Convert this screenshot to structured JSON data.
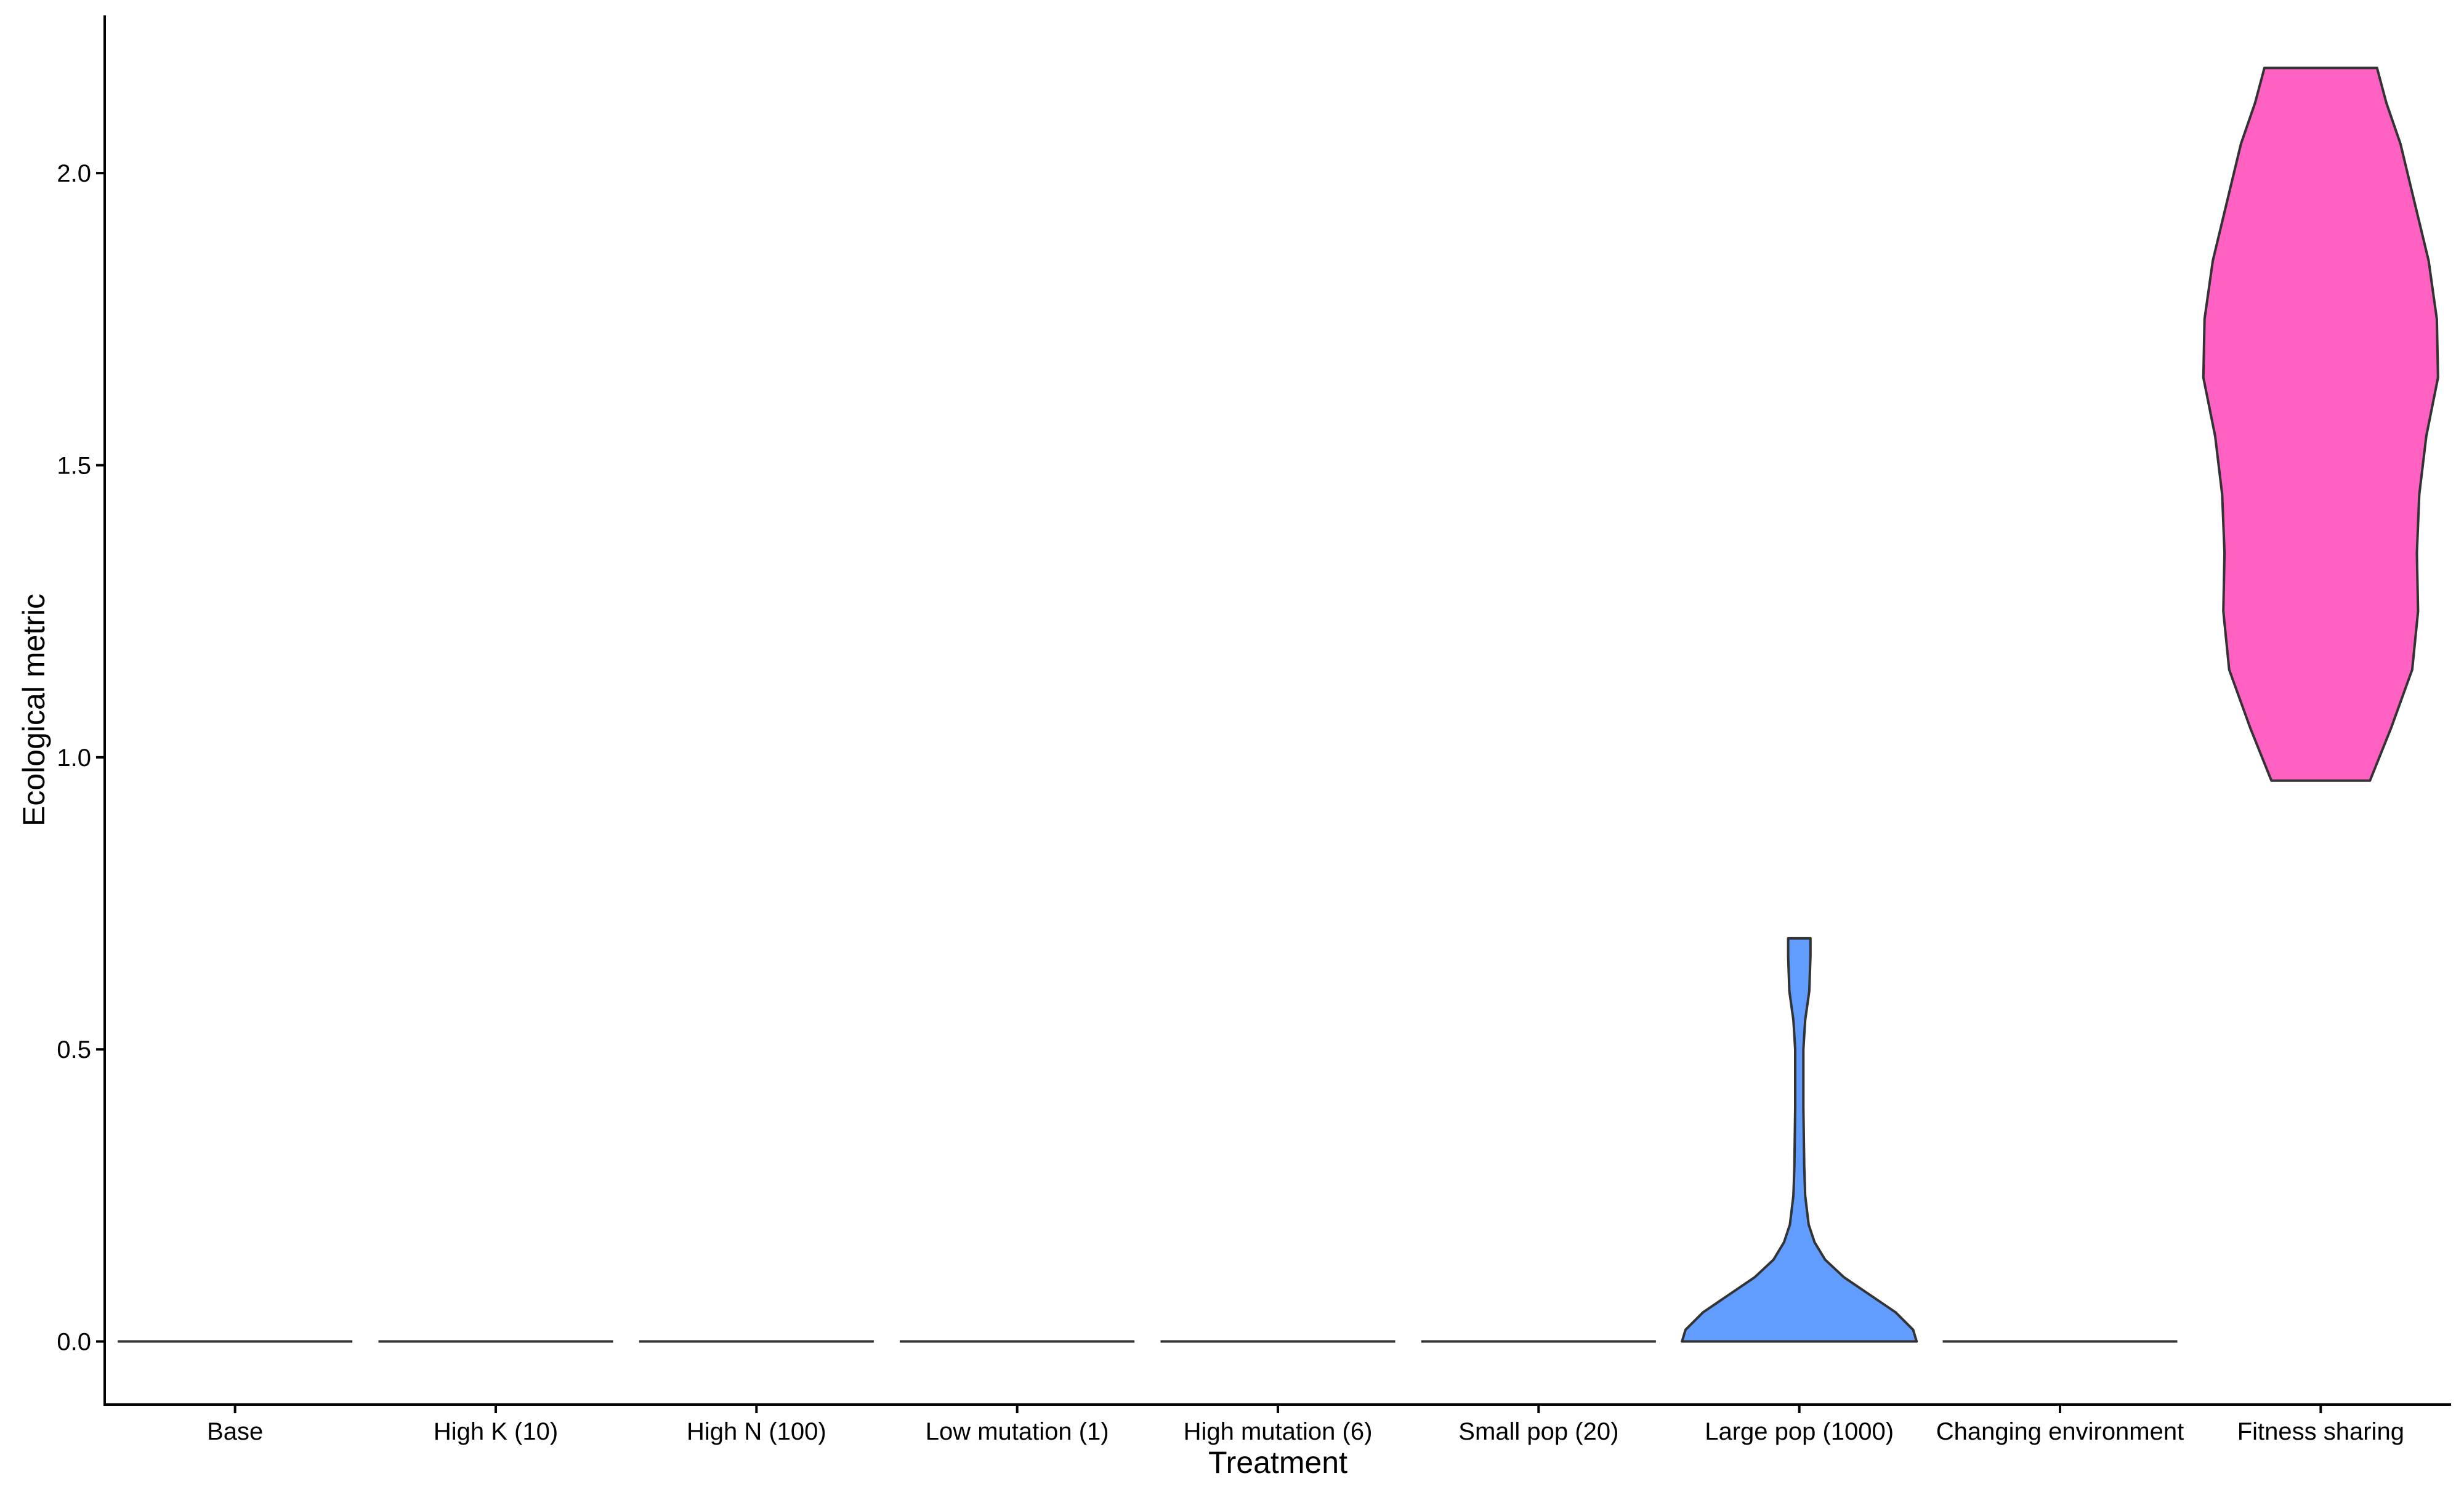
{
  "chart_data": {
    "type": "violin",
    "xlabel": "Treatment",
    "ylabel": "Ecological metric",
    "ylim": [
      -0.108,
      2.27
    ],
    "yticks": [
      0.0,
      0.5,
      1.0,
      1.5,
      2.0
    ],
    "ytick_labels": [
      "0.0",
      "0.5",
      "1.0",
      "1.5",
      "2.0"
    ],
    "grid": false,
    "legend": "none",
    "categories": [
      "Base",
      "High K (10)",
      "High N (100)",
      "Low mutation (1)",
      "High mutation (6)",
      "Small pop (20)",
      "Large pop (1000)",
      "Changing environment",
      "Fitness sharing"
    ],
    "violins": [
      {
        "category": "Base",
        "fill": "none",
        "profile": [
          [
            0.0,
            1.0
          ]
        ]
      },
      {
        "category": "High K (10)",
        "fill": "none",
        "profile": [
          [
            0.0,
            1.0
          ]
        ]
      },
      {
        "category": "High N (100)",
        "fill": "none",
        "profile": [
          [
            0.0,
            1.0
          ]
        ]
      },
      {
        "category": "Low mutation (1)",
        "fill": "none",
        "profile": [
          [
            0.0,
            1.0
          ]
        ]
      },
      {
        "category": "High mutation (6)",
        "fill": "none",
        "profile": [
          [
            0.0,
            1.0
          ]
        ]
      },
      {
        "category": "Small pop (20)",
        "fill": "none",
        "profile": [
          [
            0.0,
            1.0
          ]
        ]
      },
      {
        "category": "Large pop (1000)",
        "fill": "#619CFF",
        "profile": [
          [
            0.0,
            1.0
          ],
          [
            0.02,
            0.97
          ],
          [
            0.05,
            0.82
          ],
          [
            0.08,
            0.6
          ],
          [
            0.11,
            0.38
          ],
          [
            0.14,
            0.22
          ],
          [
            0.17,
            0.13
          ],
          [
            0.2,
            0.08
          ],
          [
            0.25,
            0.05
          ],
          [
            0.3,
            0.042
          ],
          [
            0.4,
            0.035
          ],
          [
            0.5,
            0.035
          ],
          [
            0.55,
            0.05
          ],
          [
            0.6,
            0.085
          ],
          [
            0.66,
            0.095
          ],
          [
            0.69,
            0.095
          ]
        ]
      },
      {
        "category": "Changing environment",
        "fill": "none",
        "profile": [
          [
            0.0,
            1.0
          ]
        ]
      },
      {
        "category": "Fitness sharing",
        "fill": "#FF61C3",
        "profile": [
          [
            0.96,
            0.42
          ],
          [
            1.05,
            0.6
          ],
          [
            1.15,
            0.78
          ],
          [
            1.25,
            0.83
          ],
          [
            1.35,
            0.82
          ],
          [
            1.45,
            0.84
          ],
          [
            1.55,
            0.9
          ],
          [
            1.65,
            1.0
          ],
          [
            1.75,
            0.99
          ],
          [
            1.85,
            0.92
          ],
          [
            1.95,
            0.8
          ],
          [
            2.05,
            0.68
          ],
          [
            2.12,
            0.56
          ],
          [
            2.18,
            0.48
          ]
        ]
      }
    ]
  }
}
